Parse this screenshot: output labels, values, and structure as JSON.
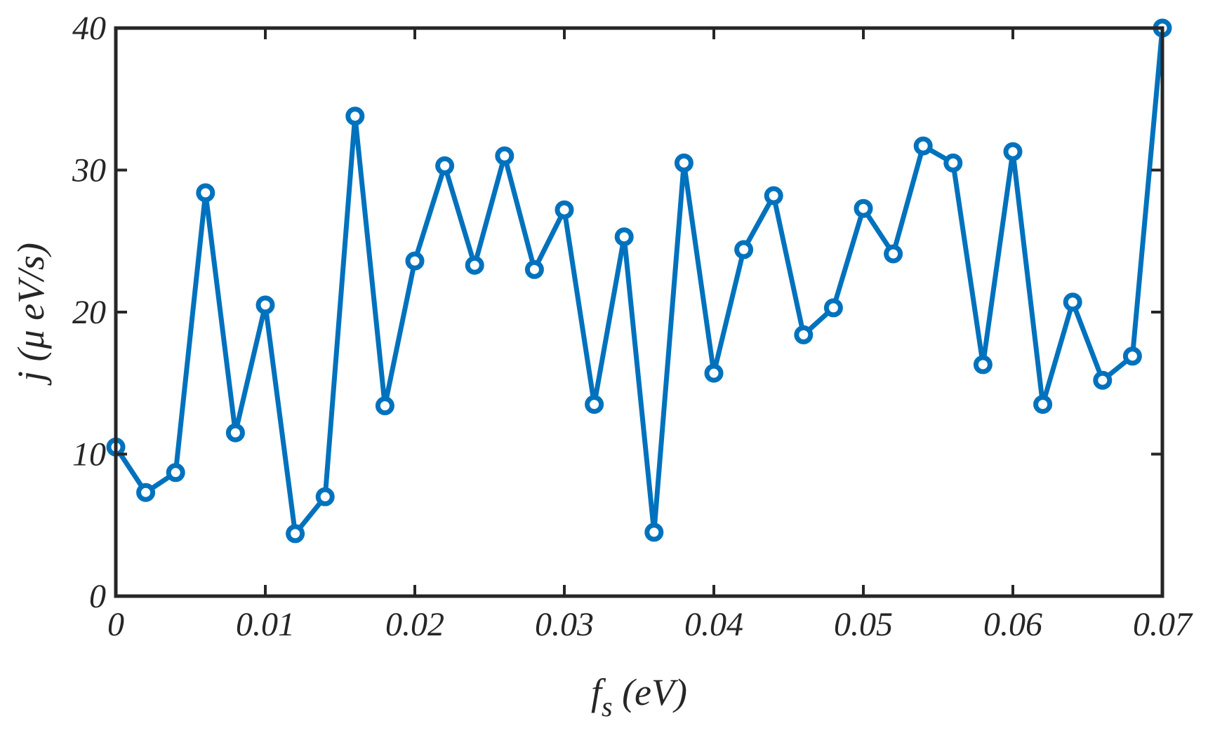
{
  "chart_data": {
    "type": "line",
    "title": "",
    "xlabel": {
      "main": "f",
      "subscript": "s",
      "rest": " (eV)"
    },
    "ylabel": "j (μ eV/s)",
    "xlim": [
      0,
      0.07
    ],
    "ylim": [
      0,
      40
    ],
    "x_ticks": [
      0,
      0.01,
      0.02,
      0.03,
      0.04,
      0.05,
      0.06,
      0.07
    ],
    "x_tick_labels": [
      "0",
      "0.01",
      "0.02",
      "0.03",
      "0.04",
      "0.05",
      "0.06",
      "0.07"
    ],
    "y_ticks": [
      0,
      10,
      20,
      30,
      40
    ],
    "y_tick_labels": [
      "0",
      "10",
      "20",
      "30",
      "40"
    ],
    "grid": false,
    "legend": "none",
    "series": [
      {
        "color": "#0072BD",
        "marker": "open-circle",
        "x": [
          0,
          0.002,
          0.004,
          0.006,
          0.008,
          0.01,
          0.012,
          0.014,
          0.016,
          0.018,
          0.02,
          0.022,
          0.024,
          0.026,
          0.028,
          0.03,
          0.032,
          0.034,
          0.036,
          0.038,
          0.04,
          0.042,
          0.044,
          0.046,
          0.048,
          0.05,
          0.052,
          0.054,
          0.056,
          0.058,
          0.06,
          0.062,
          0.064,
          0.066,
          0.068,
          0.07
        ],
        "y": [
          10.5,
          7.3,
          8.7,
          28.4,
          11.5,
          20.5,
          4.4,
          7.0,
          33.8,
          13.4,
          23.6,
          30.3,
          23.3,
          31.0,
          23.0,
          27.2,
          13.5,
          25.3,
          4.5,
          30.5,
          15.7,
          24.4,
          28.2,
          18.4,
          20.3,
          27.3,
          24.1,
          31.7,
          30.5,
          16.3,
          31.3,
          13.5,
          20.7,
          15.2,
          16.9,
          40.0
        ]
      }
    ]
  }
}
